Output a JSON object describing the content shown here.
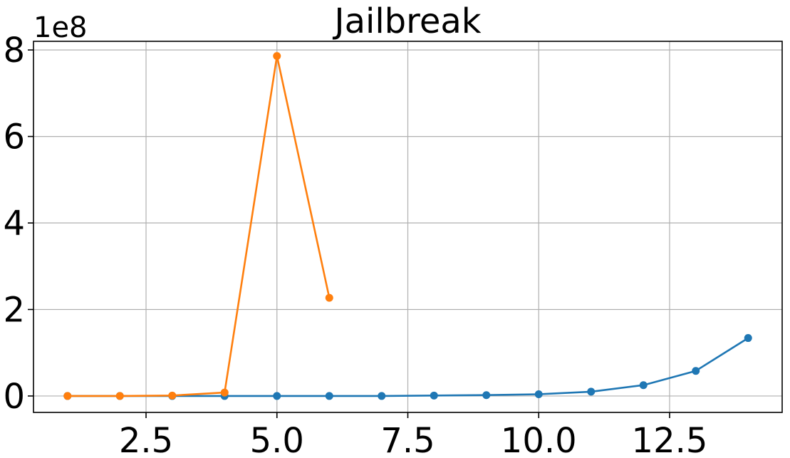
{
  "chart_data": {
    "type": "line",
    "title": "Jailbreak",
    "xlabel": "",
    "ylabel": "",
    "y_offset_label": "1e8",
    "xlim": [
      0.35,
      14.65
    ],
    "ylim": [
      -0.38,
      8.2
    ],
    "x_ticks": [
      2.5,
      5.0,
      7.5,
      10.0,
      12.5
    ],
    "x_tick_labels": [
      "2.5",
      "5.0",
      "7.5",
      "10.0",
      "12.5"
    ],
    "y_ticks": [
      0,
      2,
      4,
      6,
      8
    ],
    "y_tick_labels": [
      "0",
      "2",
      "4",
      "6",
      "8"
    ],
    "grid": true,
    "series": [
      {
        "color": "#1f77b4",
        "x": [
          1,
          2,
          3,
          4,
          5,
          6,
          7,
          8,
          9,
          10,
          11,
          12,
          13,
          14
        ],
        "y": [
          0,
          0,
          0,
          0,
          0,
          0,
          0,
          0.01,
          0.02,
          0.04,
          0.1,
          0.25,
          0.58,
          1.34
        ]
      },
      {
        "color": "#ff7f0e",
        "x": [
          1,
          2,
          3,
          4,
          5,
          6
        ],
        "y": [
          0,
          0,
          0.01,
          0.08,
          7.86,
          2.27
        ]
      }
    ]
  }
}
